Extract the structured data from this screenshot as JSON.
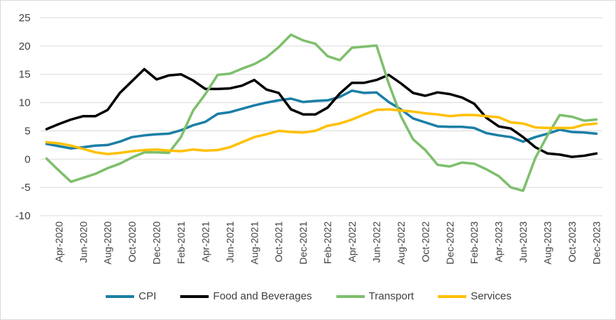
{
  "chart_data": {
    "type": "line",
    "title": "",
    "xlabel": "",
    "ylabel": "",
    "ylim": [
      -10,
      25
    ],
    "yticks": [
      "-10",
      "-5",
      "0",
      "5",
      "10",
      "15",
      "20",
      "25"
    ],
    "grid": true,
    "legend_position": "bottom",
    "categories": [
      "Mar-2020",
      "Apr-2020",
      "May-2020",
      "Jun-2020",
      "Jul-2020",
      "Aug-2020",
      "Sep-2020",
      "Oct-2020",
      "Nov-2020",
      "Dec-2020",
      "Jan-2021",
      "Feb-2021",
      "Mar-2021",
      "Apr-2021",
      "May-2021",
      "Jun-2021",
      "Jul-2021",
      "Aug-2021",
      "Sep-2021",
      "Oct-2021",
      "Nov-2021",
      "Dec-2021",
      "Jan-2022",
      "Feb-2022",
      "Mar-2022",
      "Apr-2022",
      "May-2022",
      "Jun-2022",
      "Jul-2022",
      "Aug-2022",
      "Sep-2022",
      "Oct-2022",
      "Nov-2022",
      "Dec-2022",
      "Jan-2023",
      "Feb-2023",
      "Mar-2023",
      "Apr-2023",
      "May-2023",
      "Jun-2023",
      "Jul-2023",
      "Aug-2023",
      "Sep-2023",
      "Oct-2023",
      "Nov-2023",
      "Dec-2023"
    ],
    "tick_labels": [
      "Apr-2020",
      "Jun-2020",
      "Aug-2020",
      "Oct-2020",
      "Dec-2020",
      "Feb-2021",
      "Apr-2021",
      "Jun-2021",
      "Aug-2021",
      "Oct-2021",
      "Dec-2021",
      "Feb-2022",
      "Apr-2022",
      "Jun-2022",
      "Aug-2022",
      "Oct-2022",
      "Dec-2022",
      "Feb-2023",
      "Apr-2023",
      "Jun-2023",
      "Aug-2023",
      "Oct-2023",
      "Dec-2023"
    ],
    "series": [
      {
        "name": "CPI",
        "color": "#1b7fa6",
        "values": [
          2.7,
          2.3,
          1.9,
          2.1,
          2.4,
          2.5,
          3.1,
          3.9,
          4.2,
          4.4,
          4.5,
          5.1,
          6.0,
          6.6,
          8.0,
          8.3,
          8.9,
          9.5,
          10.0,
          10.4,
          10.7,
          10.1,
          10.3,
          10.4,
          11.0,
          12.1,
          11.7,
          11.8,
          10.1,
          8.8,
          7.2,
          6.5,
          5.8,
          5.7,
          5.7,
          5.5,
          4.6,
          4.2,
          3.9,
          3.1,
          3.9,
          4.5,
          5.2,
          4.8,
          4.7,
          4.5
        ]
      },
      {
        "name": "Food and Beverages",
        "color": "#000000",
        "values": [
          5.3,
          6.2,
          7.0,
          7.6,
          7.6,
          8.7,
          11.7,
          13.8,
          15.9,
          14.1,
          14.8,
          15.0,
          13.9,
          12.4,
          12.4,
          12.5,
          13.0,
          14.0,
          12.3,
          11.7,
          8.8,
          7.9,
          7.9,
          9.1,
          11.6,
          13.5,
          13.5,
          14.0,
          14.9,
          13.4,
          11.7,
          11.2,
          11.8,
          11.5,
          10.9,
          9.8,
          7.3,
          5.8,
          5.4,
          3.9,
          2.1,
          1.0,
          0.8,
          0.4,
          0.6,
          1.0
        ]
      },
      {
        "name": "Transport",
        "color": "#7ebf6c",
        "values": [
          0.1,
          -2.0,
          -4.0,
          -3.3,
          -2.6,
          -1.6,
          -0.8,
          0.3,
          1.2,
          1.2,
          1.1,
          3.9,
          8.6,
          11.5,
          14.9,
          15.1,
          16.0,
          16.8,
          18.0,
          19.8,
          22.0,
          21.0,
          20.4,
          18.2,
          17.5,
          19.7,
          19.9,
          20.1,
          13.4,
          7.6,
          3.5,
          1.6,
          -1.0,
          -1.3,
          -0.6,
          -0.8,
          -1.8,
          -3.0,
          -5.0,
          -5.6,
          0.2,
          4.2,
          7.8,
          7.5,
          6.8,
          7.0
        ]
      },
      {
        "name": "Services",
        "color": "#ffc000",
        "values": [
          3.0,
          2.8,
          2.4,
          1.8,
          1.2,
          0.9,
          1.1,
          1.4,
          1.6,
          1.7,
          1.5,
          1.4,
          1.7,
          1.5,
          1.6,
          2.1,
          3.0,
          3.9,
          4.4,
          5.0,
          4.8,
          4.7,
          5.0,
          5.9,
          6.3,
          7.0,
          7.9,
          8.7,
          8.8,
          8.6,
          8.4,
          8.1,
          7.9,
          7.6,
          7.8,
          7.8,
          7.6,
          7.4,
          6.5,
          6.3,
          5.6,
          5.5,
          5.5,
          5.5,
          6.1,
          6.3
        ]
      }
    ]
  }
}
